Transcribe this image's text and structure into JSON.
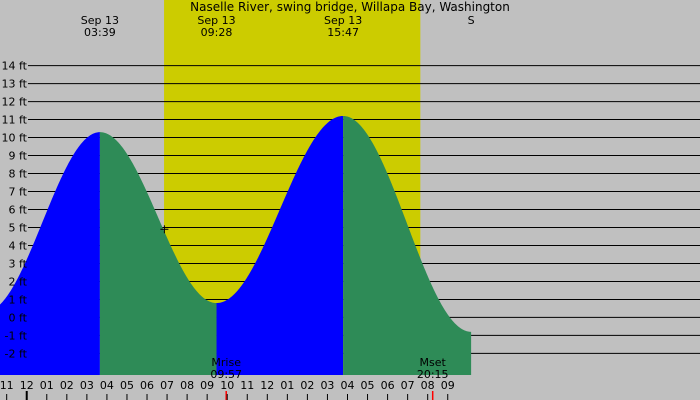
{
  "chart_data": {
    "type": "area",
    "title": "Naselle River, swing bridge, Willapa Bay, Washington",
    "y_unit": "ft",
    "ylim": [
      -3.2,
      15.2
    ],
    "xlim": [
      "Sep 12 22:40",
      "Sep 14 09:35"
    ],
    "y_ticks": [
      {
        "value": 14,
        "label": "14 ft"
      },
      {
        "value": 13,
        "label": "13 ft"
      },
      {
        "value": 12,
        "label": "12 ft"
      },
      {
        "value": 11,
        "label": "11 ft"
      },
      {
        "value": 10,
        "label": "10 ft"
      },
      {
        "value": 9,
        "label": "9 ft"
      },
      {
        "value": 8,
        "label": "8 ft"
      },
      {
        "value": 7,
        "label": "7 ft"
      },
      {
        "value": 6,
        "label": "6 ft"
      },
      {
        "value": 5,
        "label": "5 ft"
      },
      {
        "value": 4,
        "label": "4 ft"
      },
      {
        "value": 3,
        "label": "3 ft"
      },
      {
        "value": 2,
        "label": "2 ft"
      },
      {
        "value": 1,
        "label": "1 ft"
      },
      {
        "value": 0,
        "label": "0 ft"
      },
      {
        "value": -1,
        "label": "-1 ft"
      },
      {
        "value": -2,
        "label": "-2 ft"
      }
    ],
    "hour_ticks": [
      {
        "time": "Sep 12 23:00",
        "label": "11"
      },
      {
        "time": "Sep 13 00:00",
        "label": "12"
      },
      {
        "time": "Sep 13 01:00",
        "label": "01"
      },
      {
        "time": "Sep 13 02:00",
        "label": "02"
      },
      {
        "time": "Sep 13 03:00",
        "label": "03"
      },
      {
        "time": "Sep 13 04:00",
        "label": "04"
      },
      {
        "time": "Sep 13 05:00",
        "label": "05"
      },
      {
        "time": "Sep 13 06:00",
        "label": "06"
      },
      {
        "time": "Sep 13 07:00",
        "label": "07"
      },
      {
        "time": "Sep 13 08:00",
        "label": "08"
      },
      {
        "time": "Sep 13 09:00",
        "label": "09"
      },
      {
        "time": "Sep 13 10:00",
        "label": "10"
      },
      {
        "time": "Sep 13 11:00",
        "label": "11"
      },
      {
        "time": "Sep 13 12:00",
        "label": "12"
      },
      {
        "time": "Sep 13 13:00",
        "label": "01"
      },
      {
        "time": "Sep 13 14:00",
        "label": "02"
      },
      {
        "time": "Sep 13 15:00",
        "label": "03"
      },
      {
        "time": "Sep 13 16:00",
        "label": "04"
      },
      {
        "time": "Sep 13 17:00",
        "label": "05"
      },
      {
        "time": "Sep 13 18:00",
        "label": "06"
      },
      {
        "time": "Sep 13 19:00",
        "label": "07"
      },
      {
        "time": "Sep 13 20:00",
        "label": "08"
      },
      {
        "time": "Sep 13 21:00",
        "label": "09"
      }
    ],
    "extremes": [
      {
        "time": "Sep 12 21:55",
        "height": 0.3,
        "type": "low",
        "date_label": "",
        "time_label": ""
      },
      {
        "time": "Sep 13 03:39",
        "height": 10.3,
        "type": "high",
        "date_label": "Sep 13",
        "time_label": "03:39"
      },
      {
        "time": "Sep 13 09:28",
        "height": 0.8,
        "type": "low",
        "date_label": "Sep 13",
        "time_label": "09:28"
      },
      {
        "time": "Sep 13 15:47",
        "height": 11.2,
        "type": "high",
        "date_label": "Sep 13",
        "time_label": "15:47"
      },
      {
        "time": "Sep 13 22:10",
        "height": -0.8,
        "type": "low",
        "date_label": "S",
        "time_label": ""
      }
    ],
    "daylight": {
      "sunrise": "Sep 13 06:51",
      "sunset": "Sep 13 19:38"
    },
    "current_time": {
      "time": "Sep 13 06:52",
      "height": 4.9
    },
    "moon_events": [
      {
        "label": "Mrise",
        "time": "Sep 13 09:57",
        "time_label": "09:57"
      },
      {
        "label": "Mset",
        "time": "Sep 13 20:15",
        "time_label": "20:15"
      }
    ],
    "midnight_marker": "Sep 13 00:00",
    "colors": {
      "night": "#c0c0c0",
      "day": "#cccc00",
      "rising": "#0000ff",
      "falling": "#2e8b57",
      "gridline": "#000000",
      "moon_tick": "#ff0000"
    }
  }
}
